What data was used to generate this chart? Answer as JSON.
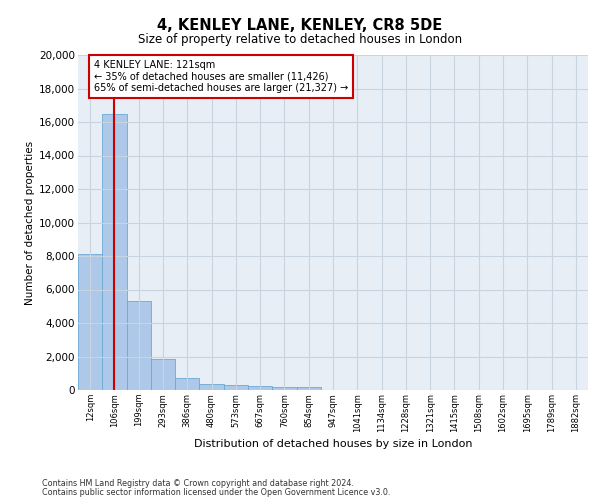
{
  "title1": "4, KENLEY LANE, KENLEY, CR8 5DE",
  "title2": "Size of property relative to detached houses in London",
  "xlabel": "Distribution of detached houses by size in London",
  "ylabel": "Number of detached properties",
  "bar_color": "#adc8e8",
  "bar_edge_color": "#6aaad4",
  "vline_color": "#cc0000",
  "vline_x": 1,
  "annotation_text": "4 KENLEY LANE: 121sqm\n← 35% of detached houses are smaller (11,426)\n65% of semi-detached houses are larger (21,327) →",
  "categories": [
    "12sqm",
    "106sqm",
    "199sqm",
    "293sqm",
    "386sqm",
    "480sqm",
    "573sqm",
    "667sqm",
    "760sqm",
    "854sqm",
    "947sqm",
    "1041sqm",
    "1134sqm",
    "1228sqm",
    "1321sqm",
    "1415sqm",
    "1508sqm",
    "1602sqm",
    "1695sqm",
    "1789sqm",
    "1882sqm"
  ],
  "values": [
    8100,
    16500,
    5300,
    1850,
    700,
    380,
    280,
    220,
    180,
    200,
    0,
    0,
    0,
    0,
    0,
    0,
    0,
    0,
    0,
    0,
    0
  ],
  "ylim": [
    0,
    20000
  ],
  "yticks": [
    0,
    2000,
    4000,
    6000,
    8000,
    10000,
    12000,
    14000,
    16000,
    18000,
    20000
  ],
  "grid_color": "#c8d4e0",
  "bg_color": "#e8eef5",
  "footer1": "Contains HM Land Registry data © Crown copyright and database right 2024.",
  "footer2": "Contains public sector information licensed under the Open Government Licence v3.0."
}
